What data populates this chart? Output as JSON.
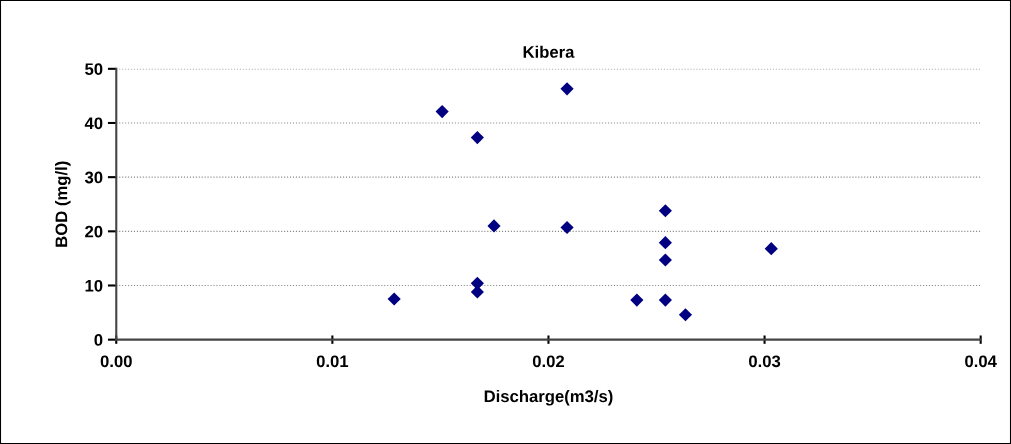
{
  "chart_data": {
    "type": "scatter",
    "title": "Kibera",
    "xlabel": "Discharge(m3/s)",
    "ylabel": "BOD (mg/l)",
    "x": [
      0.01286,
      0.01508,
      0.01671,
      0.01748,
      0.02086,
      0.02086,
      0.01671,
      0.01671,
      0.02541,
      0.02541,
      0.02541,
      0.03031,
      0.02409,
      0.02541,
      0.02634
    ],
    "values": [
      7.5,
      42.1,
      37.3,
      21.0,
      46.3,
      20.7,
      10.4,
      8.8,
      23.8,
      17.9,
      14.7,
      16.8,
      7.3,
      7.3,
      4.6
    ],
    "color": "#000080",
    "marker": "diamond",
    "grid": "y",
    "legend": false,
    "xlim": [
      0,
      0.04
    ],
    "xticks": [
      {
        "value": 0,
        "label": "0.00"
      },
      {
        "value": 0.01,
        "label": "0.01"
      },
      {
        "value": 0.02,
        "label": "0.02"
      },
      {
        "value": 0.03,
        "label": "0.03"
      },
      {
        "value": 0.04,
        "label": "0.04"
      }
    ],
    "ylim": [
      0,
      50
    ],
    "yticks": [
      0,
      10,
      20,
      30,
      40,
      50
    ]
  }
}
